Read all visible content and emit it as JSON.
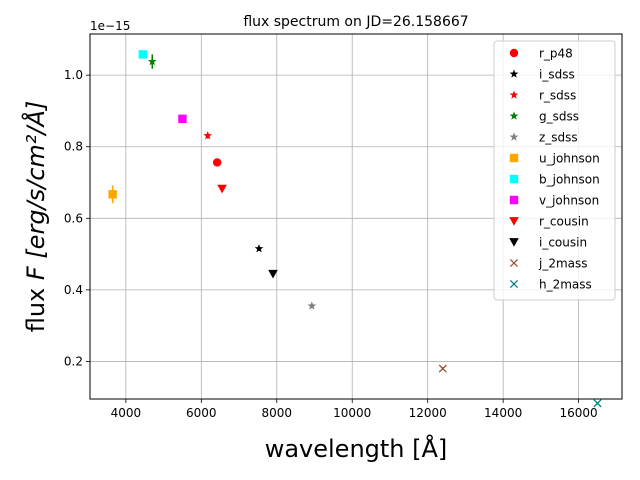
{
  "chart_data": {
    "type": "scatter",
    "title": "flux spectrum on JD=26.158667",
    "xlabel": "wavelength [Å]",
    "ylabel_prefix": "flux ",
    "ylabel_italic": "F [erg/s/cm²/Å]",
    "y_offset_text": "1e−15",
    "xlim": [
      3050,
      17150
    ],
    "ylim": [
      0.095,
      1.115
    ],
    "x_ticks": [
      4000,
      6000,
      8000,
      10000,
      12000,
      14000,
      16000
    ],
    "y_ticks": [
      0.2,
      0.4,
      0.6,
      0.8,
      1.0
    ],
    "y_tick_labels": [
      "0.2",
      "0.4",
      "0.6",
      "0.8",
      "1.0"
    ],
    "grid": true,
    "legend_position": "top-right",
    "series": [
      {
        "name": "r_p48",
        "marker": "circle",
        "color": "#ff0000",
        "x": [
          6420
        ],
        "y": [
          0.756
        ],
        "yerr": [
          0.008
        ]
      },
      {
        "name": "i_sdss",
        "marker": "star",
        "color": "#000000",
        "x": [
          7530
        ],
        "y": [
          0.515
        ],
        "yerr": [
          0.006
        ]
      },
      {
        "name": "r_sdss",
        "marker": "star",
        "color": "#ff0000",
        "x": [
          6170
        ],
        "y": [
          0.831
        ],
        "yerr": [
          0.008
        ]
      },
      {
        "name": "g_sdss",
        "marker": "star",
        "color": "#008000",
        "x": [
          4700
        ],
        "y": [
          1.038
        ],
        "yerr": [
          0.02
        ]
      },
      {
        "name": "z_sdss",
        "marker": "star",
        "color": "#808080",
        "x": [
          8930
        ],
        "y": [
          0.355
        ],
        "yerr": [
          0.005
        ]
      },
      {
        "name": "u_johnson",
        "marker": "square",
        "color": "#ffa500",
        "x": [
          3650
        ],
        "y": [
          0.667
        ],
        "yerr": [
          0.025
        ]
      },
      {
        "name": "b_johnson",
        "marker": "square",
        "color": "#00ffff",
        "x": [
          4450
        ],
        "y": [
          1.058
        ],
        "yerr": [
          0.008
        ]
      },
      {
        "name": "v_johnson",
        "marker": "square",
        "color": "#ff00ff",
        "x": [
          5500
        ],
        "y": [
          0.878
        ],
        "yerr": [
          0.007
        ]
      },
      {
        "name": "r_cousin",
        "marker": "triangle_down",
        "color": "#ff0000",
        "x": [
          6550
        ],
        "y": [
          0.683
        ],
        "yerr": [
          0.006
        ]
      },
      {
        "name": "i_cousin",
        "marker": "triangle_down",
        "color": "#000000",
        "x": [
          7900
        ],
        "y": [
          0.445
        ],
        "yerr": [
          0.006
        ]
      },
      {
        "name": "j_2mass",
        "marker": "x",
        "color": "#a0522d",
        "x": [
          12400
        ],
        "y": [
          0.18
        ],
        "yerr": [
          0.004
        ]
      },
      {
        "name": "h_2mass",
        "marker": "x",
        "color": "#008080",
        "x": [
          16500
        ],
        "y": [
          0.083
        ],
        "yerr": [
          0.003
        ]
      }
    ]
  }
}
